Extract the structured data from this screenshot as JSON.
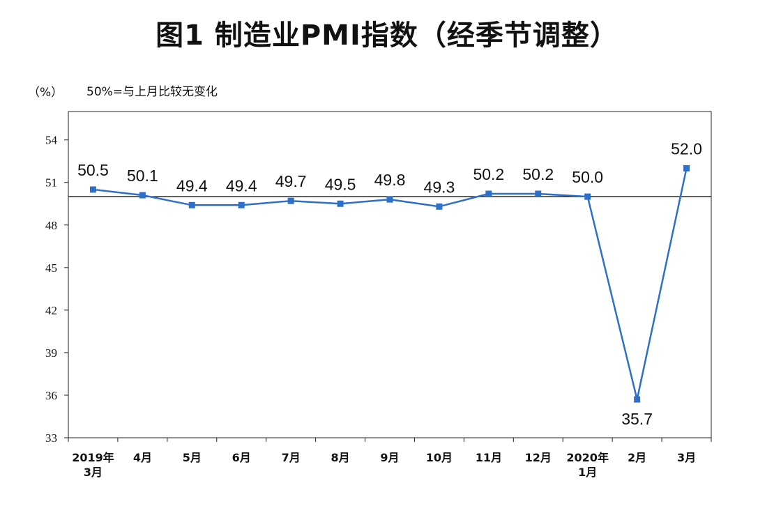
{
  "title": "图1  制造业PMI指数（经季节调整）",
  "unit_label": "（%）",
  "reference_note": "50%=与上月比较无变化",
  "chart_data": {
    "type": "line",
    "title": "图1  制造业PMI指数（经季节调整）",
    "xlabel": "",
    "ylabel": "（%）",
    "categories": [
      [
        "2019年",
        "3月"
      ],
      [
        "4月"
      ],
      [
        "5月"
      ],
      [
        "6月"
      ],
      [
        "7月"
      ],
      [
        "8月"
      ],
      [
        "9月"
      ],
      [
        "10月"
      ],
      [
        "11月"
      ],
      [
        "12月"
      ],
      [
        "2020年",
        "1月"
      ],
      [
        "2月"
      ],
      [
        "3月"
      ]
    ],
    "series": [
      {
        "values": [
          50.5,
          50.1,
          49.4,
          49.4,
          49.7,
          49.5,
          49.8,
          49.3,
          50.2,
          50.2,
          50.0,
          35.7,
          52.0
        ]
      }
    ],
    "data_labels": [
      "50.5",
      "50.1",
      "49.4",
      "49.4",
      "49.7",
      "49.5",
      "49.8",
      "49.3",
      "50.2",
      "50.2",
      "50.0",
      "35.7",
      "52.0"
    ],
    "ylim": [
      33,
      56
    ],
    "yticks": [
      33,
      36,
      39,
      42,
      45,
      48,
      51,
      54
    ],
    "reference_line": 50,
    "grid": false,
    "line_color": "#2e6fc7",
    "marker_color": "#2e6fc7"
  }
}
